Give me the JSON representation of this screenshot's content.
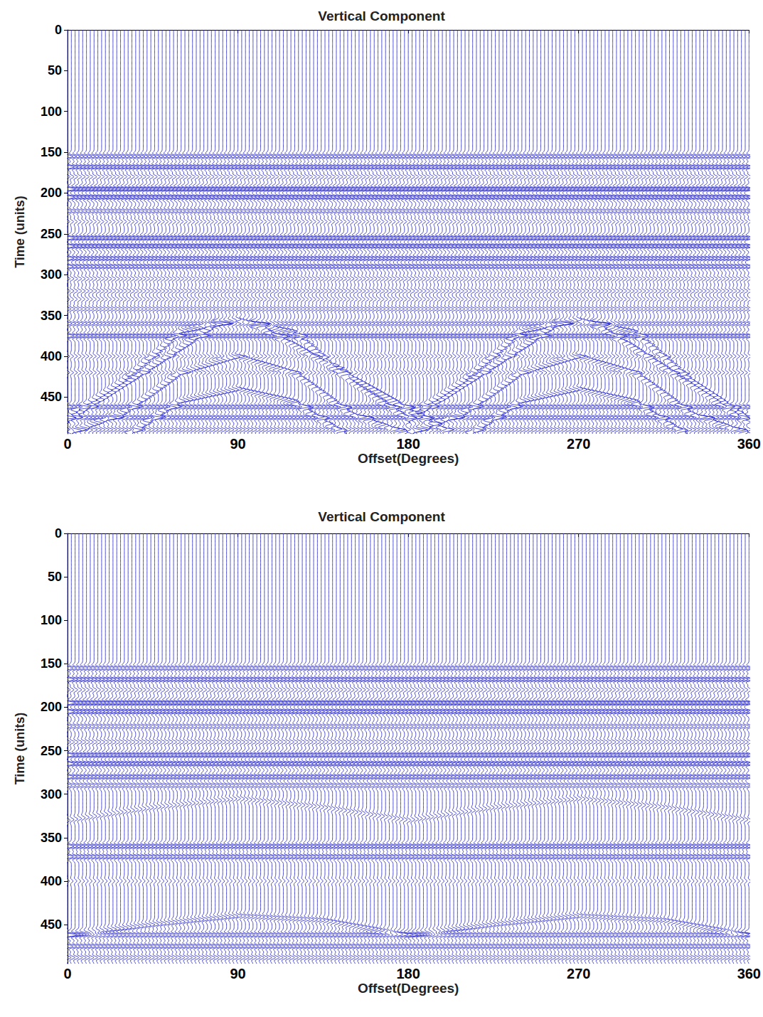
{
  "chart_data": [
    {
      "type": "wiggle",
      "title": "Vertical Component",
      "x_label": "Offset(Degrees)",
      "y_label": "Time (units)",
      "color": "#2020cc",
      "grid": false,
      "xlim": [
        0,
        360
      ],
      "xticks": [
        0,
        90,
        180,
        270,
        360
      ],
      "ylim": [
        0,
        495
      ],
      "yticks": [
        0,
        50,
        100,
        150,
        200,
        250,
        300,
        350,
        400,
        450
      ],
      "trace_offsets": [
        0,
        2,
        4,
        6,
        8,
        10,
        12,
        14,
        16,
        18,
        20,
        22,
        24,
        26,
        28,
        30,
        32,
        34,
        36,
        38,
        40,
        42,
        44,
        46,
        48,
        50,
        52,
        54,
        56,
        58,
        60,
        62,
        64,
        66,
        68,
        70,
        72,
        74,
        76,
        78,
        80,
        82,
        84,
        86,
        88,
        90,
        92,
        94,
        96,
        98,
        100,
        102,
        104,
        106,
        108,
        110,
        112,
        114,
        116,
        118,
        120,
        122,
        124,
        126,
        128,
        130,
        132,
        134,
        136,
        138,
        140,
        142,
        144,
        146,
        148,
        150,
        152,
        154,
        156,
        158,
        160,
        162,
        164,
        166,
        168,
        170,
        172,
        174,
        176,
        178,
        180,
        182,
        184,
        186,
        188,
        190,
        192,
        194,
        196,
        198,
        200,
        202,
        204,
        206,
        208,
        210,
        212,
        214,
        216,
        218,
        220,
        222,
        224,
        226,
        228,
        230,
        232,
        234,
        236,
        238,
        240,
        242,
        244,
        246,
        248,
        250,
        252,
        254,
        256,
        258,
        260,
        262,
        264,
        266,
        268,
        270,
        272,
        274,
        276,
        278,
        280,
        282,
        284,
        286,
        288,
        290,
        292,
        294,
        296,
        298,
        300,
        302,
        304,
        306,
        308,
        310,
        312,
        314,
        316,
        318,
        320,
        322,
        324,
        326,
        328,
        330,
        332,
        334,
        336,
        338,
        340,
        342,
        344,
        346,
        348,
        350,
        352,
        354,
        356,
        358,
        360
      ],
      "events": [
        {
          "offsets": [
            0,
            360
          ],
          "times": [
            155,
            155
          ],
          "amplitude": 1.2
        },
        {
          "offsets": [
            0,
            360
          ],
          "times": [
            168,
            168
          ],
          "amplitude": 1.5
        },
        {
          "offsets": [
            0,
            360
          ],
          "times": [
            180,
            180
          ],
          "amplitude": 0.6
        },
        {
          "offsets": [
            0,
            360
          ],
          "times": [
            195,
            195
          ],
          "amplitude": 1.8
        },
        {
          "offsets": [
            0,
            360
          ],
          "times": [
            205,
            205
          ],
          "amplitude": 1.6
        },
        {
          "offsets": [
            0,
            360
          ],
          "times": [
            222,
            222
          ],
          "amplitude": 1.0
        },
        {
          "offsets": [
            0,
            360
          ],
          "times": [
            235,
            235
          ],
          "amplitude": 0.5
        },
        {
          "offsets": [
            0,
            360
          ],
          "times": [
            255,
            255
          ],
          "amplitude": 1.6
        },
        {
          "offsets": [
            0,
            360
          ],
          "times": [
            265,
            265
          ],
          "amplitude": 1.6
        },
        {
          "offsets": [
            0,
            360
          ],
          "times": [
            280,
            280
          ],
          "amplitude": 1.4
        },
        {
          "offsets": [
            0,
            360
          ],
          "times": [
            290,
            290
          ],
          "amplitude": 1.3
        },
        {
          "offsets": [
            0,
            360
          ],
          "times": [
            305,
            305
          ],
          "amplitude": 0.6
        },
        {
          "offsets": [
            0,
            360
          ],
          "times": [
            320,
            320
          ],
          "amplitude": 0.6
        },
        {
          "offsets": [
            0,
            360
          ],
          "times": [
            330,
            330
          ],
          "amplitude": 0.5
        },
        {
          "offsets": [
            0,
            360
          ],
          "times": [
            342,
            342
          ],
          "amplitude": 0.8
        },
        {
          "offsets": [
            0,
            360
          ],
          "times": [
            360,
            360
          ],
          "amplitude": 1.0
        },
        {
          "offsets": [
            0,
            360
          ],
          "times": [
            375,
            375
          ],
          "amplitude": 1.4
        },
        {
          "offsets": [
            0,
            360
          ],
          "times": [
            400,
            400
          ],
          "amplitude": 0.5
        },
        {
          "offsets": [
            0,
            360
          ],
          "times": [
            420,
            420
          ],
          "amplitude": 0.5
        },
        {
          "offsets": [
            0,
            360
          ],
          "times": [
            462,
            462
          ],
          "amplitude": 1.2
        },
        {
          "offsets": [
            0,
            360
          ],
          "times": [
            475,
            475
          ],
          "amplitude": 1.2
        },
        {
          "offsets": [
            0,
            360
          ],
          "times": [
            490,
            490
          ],
          "amplitude": 0.8
        },
        {
          "offsets": [
            0,
            30,
            60,
            90,
            120,
            150,
            180,
            210,
            240,
            270,
            300,
            330,
            360
          ],
          "times": [
            475,
            430,
            370,
            355,
            370,
            430,
            475,
            430,
            370,
            355,
            370,
            430,
            475
          ],
          "amplitude": 1.0
        },
        {
          "offsets": [
            0,
            30,
            60,
            90,
            120,
            150,
            180,
            210,
            240,
            270,
            300,
            330,
            360
          ],
          "times": [
            495,
            470,
            420,
            400,
            420,
            470,
            495,
            470,
            420,
            400,
            420,
            470,
            495
          ],
          "amplitude": 1.0
        },
        {
          "offsets": [
            0,
            30,
            60,
            90,
            120,
            150,
            180,
            210,
            240,
            270,
            300,
            330,
            360
          ],
          "times": [
            520,
            500,
            455,
            440,
            455,
            500,
            520,
            500,
            455,
            440,
            455,
            500,
            520
          ],
          "amplitude": 1.0
        },
        {
          "offsets": [
            0,
            80
          ],
          "times": [
            480,
            360
          ],
          "amplitude": 1.0
        },
        {
          "offsets": [
            100,
            200
          ],
          "times": [
            360,
            490
          ],
          "amplitude": 1.0
        },
        {
          "offsets": [
            180,
            260
          ],
          "times": [
            480,
            360
          ],
          "amplitude": 1.0
        },
        {
          "offsets": [
            280,
            360
          ],
          "times": [
            360,
            480
          ],
          "amplitude": 1.0
        }
      ]
    },
    {
      "type": "wiggle",
      "title": "Vertical Component",
      "x_label": "Offset(Degrees)",
      "y_label": "Time (units)",
      "color": "#2020cc",
      "grid": false,
      "xlim": [
        0,
        360
      ],
      "xticks": [
        0,
        90,
        180,
        270,
        360
      ],
      "ylim": [
        0,
        495
      ],
      "yticks": [
        0,
        50,
        100,
        150,
        200,
        250,
        300,
        350,
        400,
        450
      ],
      "trace_offsets": [
        0,
        2,
        4,
        6,
        8,
        10,
        12,
        14,
        16,
        18,
        20,
        22,
        24,
        26,
        28,
        30,
        32,
        34,
        36,
        38,
        40,
        42,
        44,
        46,
        48,
        50,
        52,
        54,
        56,
        58,
        60,
        62,
        64,
        66,
        68,
        70,
        72,
        74,
        76,
        78,
        80,
        82,
        84,
        86,
        88,
        90,
        92,
        94,
        96,
        98,
        100,
        102,
        104,
        106,
        108,
        110,
        112,
        114,
        116,
        118,
        120,
        122,
        124,
        126,
        128,
        130,
        132,
        134,
        136,
        138,
        140,
        142,
        144,
        146,
        148,
        150,
        152,
        154,
        156,
        158,
        160,
        162,
        164,
        166,
        168,
        170,
        172,
        174,
        176,
        178,
        180,
        182,
        184,
        186,
        188,
        190,
        192,
        194,
        196,
        198,
        200,
        202,
        204,
        206,
        208,
        210,
        212,
        214,
        216,
        218,
        220,
        222,
        224,
        226,
        228,
        230,
        232,
        234,
        236,
        238,
        240,
        242,
        244,
        246,
        248,
        250,
        252,
        254,
        256,
        258,
        260,
        262,
        264,
        266,
        268,
        270,
        272,
        274,
        276,
        278,
        280,
        282,
        284,
        286,
        288,
        290,
        292,
        294,
        296,
        298,
        300,
        302,
        304,
        306,
        308,
        310,
        312,
        314,
        316,
        318,
        320,
        322,
        324,
        326,
        328,
        330,
        332,
        334,
        336,
        338,
        340,
        342,
        344,
        346,
        348,
        350,
        352,
        354,
        356,
        358,
        360
      ],
      "events": [
        {
          "offsets": [
            0,
            360
          ],
          "times": [
            155,
            155
          ],
          "amplitude": 1.2
        },
        {
          "offsets": [
            0,
            360
          ],
          "times": [
            168,
            168
          ],
          "amplitude": 1.5
        },
        {
          "offsets": [
            0,
            360
          ],
          "times": [
            180,
            180
          ],
          "amplitude": 0.6
        },
        {
          "offsets": [
            0,
            360
          ],
          "times": [
            195,
            195
          ],
          "amplitude": 1.8
        },
        {
          "offsets": [
            0,
            360
          ],
          "times": [
            205,
            205
          ],
          "amplitude": 1.6
        },
        {
          "offsets": [
            0,
            360
          ],
          "times": [
            222,
            222
          ],
          "amplitude": 1.0
        },
        {
          "offsets": [
            0,
            360
          ],
          "times": [
            240,
            240
          ],
          "amplitude": 0.7
        },
        {
          "offsets": [
            0,
            360
          ],
          "times": [
            255,
            255
          ],
          "amplitude": 1.6
        },
        {
          "offsets": [
            0,
            360
          ],
          "times": [
            265,
            265
          ],
          "amplitude": 1.6
        },
        {
          "offsets": [
            0,
            360
          ],
          "times": [
            280,
            280
          ],
          "amplitude": 1.4
        },
        {
          "offsets": [
            0,
            360
          ],
          "times": [
            290,
            290
          ],
          "amplitude": 1.0
        },
        {
          "offsets": [
            0,
            360
          ],
          "times": [
            360,
            360
          ],
          "amplitude": 1.4
        },
        {
          "offsets": [
            0,
            360
          ],
          "times": [
            372,
            372
          ],
          "amplitude": 1.3
        },
        {
          "offsets": [
            0,
            360
          ],
          "times": [
            400,
            400
          ],
          "amplitude": 0.4
        },
        {
          "offsets": [
            0,
            360
          ],
          "times": [
            462,
            462
          ],
          "amplitude": 1.2
        },
        {
          "offsets": [
            0,
            360
          ],
          "times": [
            475,
            475
          ],
          "amplitude": 1.2
        },
        {
          "offsets": [
            0,
            360
          ],
          "times": [
            488,
            488
          ],
          "amplitude": 0.8
        },
        {
          "offsets": [
            0,
            45,
            90,
            135,
            180,
            225,
            270,
            315,
            360
          ],
          "times": [
            330,
            315,
            305,
            315,
            330,
            315,
            305,
            315,
            330
          ],
          "amplitude": 0.6
        },
        {
          "offsets": [
            0,
            45,
            90,
            135,
            180,
            225,
            270,
            315,
            360
          ],
          "times": [
            462,
            450,
            440,
            445,
            462,
            450,
            440,
            445,
            462
          ],
          "amplitude": 0.9
        }
      ]
    }
  ]
}
